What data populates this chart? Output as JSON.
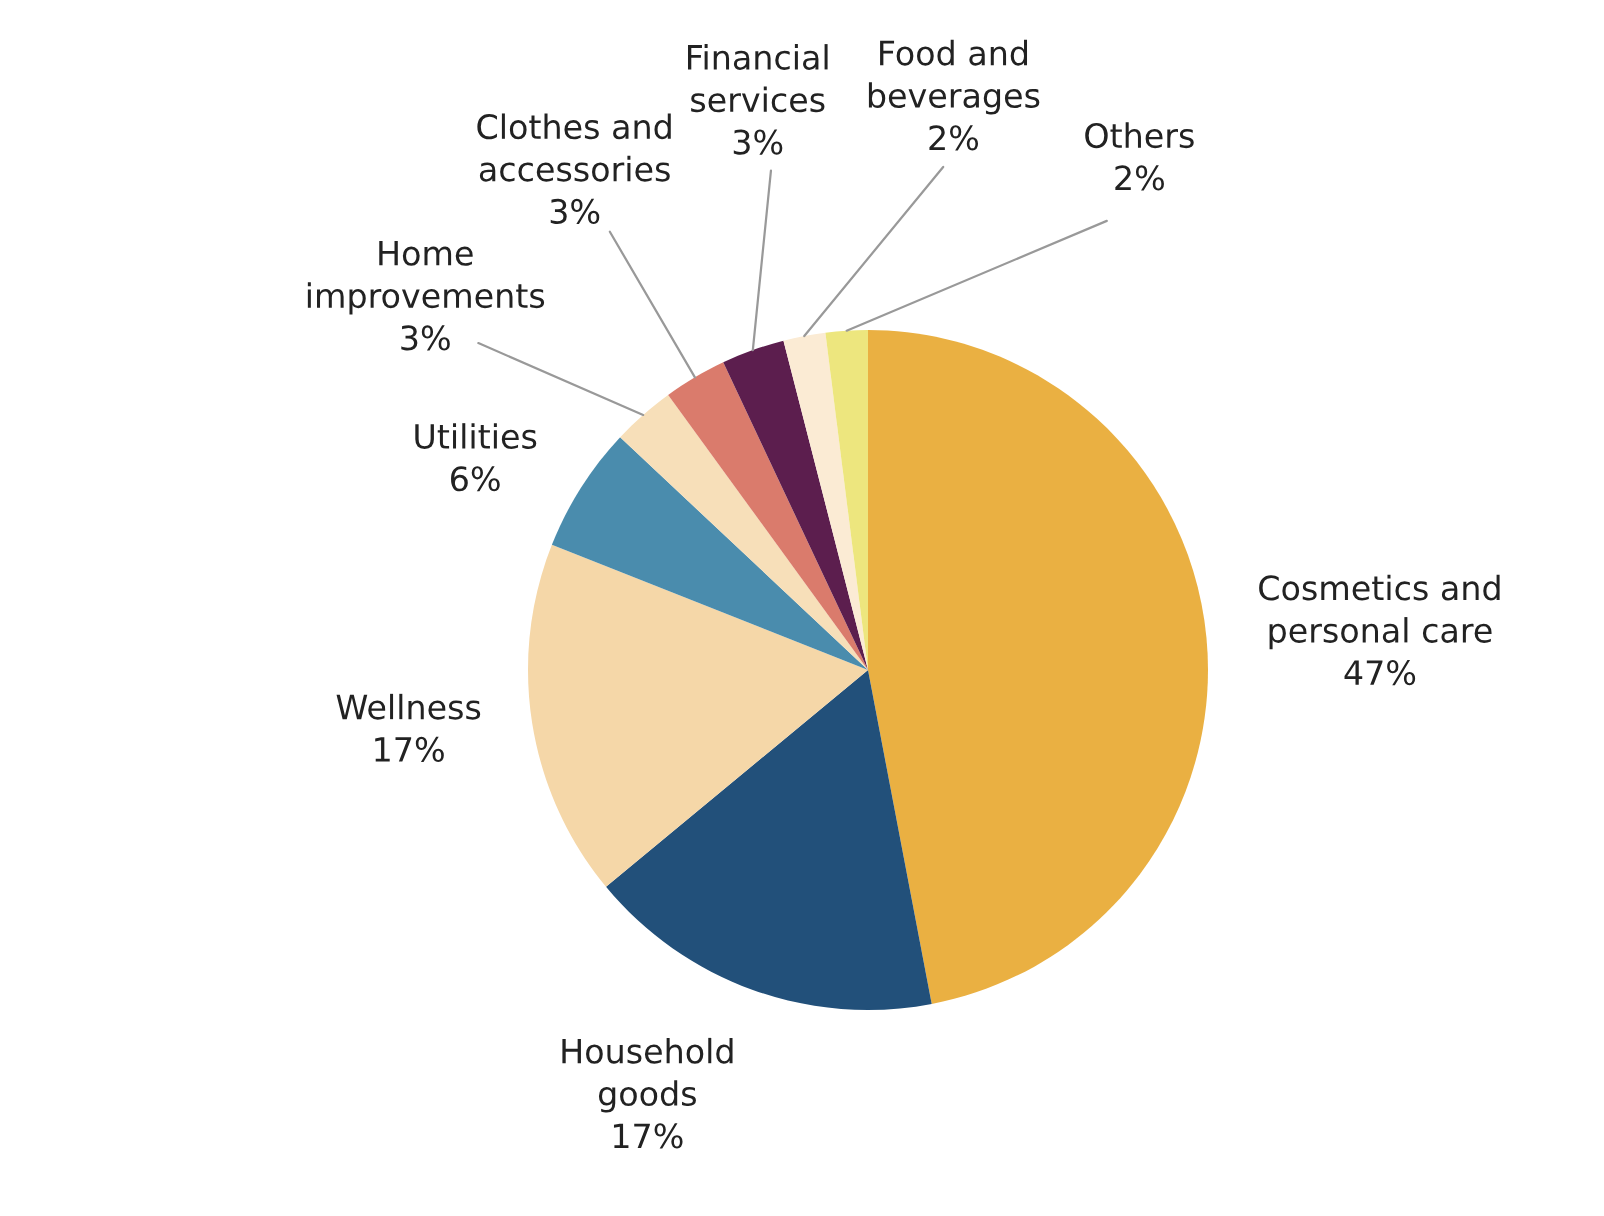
{
  "chart_data": {
    "type": "pie",
    "categories": [
      "Cosmetics and personal care",
      "Household goods",
      "Wellness",
      "Utilities",
      "Home improvements",
      "Clothes and accessories",
      "Financial services",
      "Food and beverages",
      "Others"
    ],
    "values": [
      47,
      17,
      17,
      6,
      3,
      3,
      3,
      2,
      2
    ],
    "value_labels": [
      "47%",
      "17%",
      "17%",
      "6%",
      "3%",
      "3%",
      "3%",
      "2%",
      "2%"
    ],
    "colors": [
      "#eab042",
      "#22507a",
      "#f5d7a8",
      "#4a8cad",
      "#f7dfb9",
      "#da7b6c",
      "#5c1e4e",
      "#fbebd4",
      "#ede67e"
    ],
    "legend": false
  }
}
